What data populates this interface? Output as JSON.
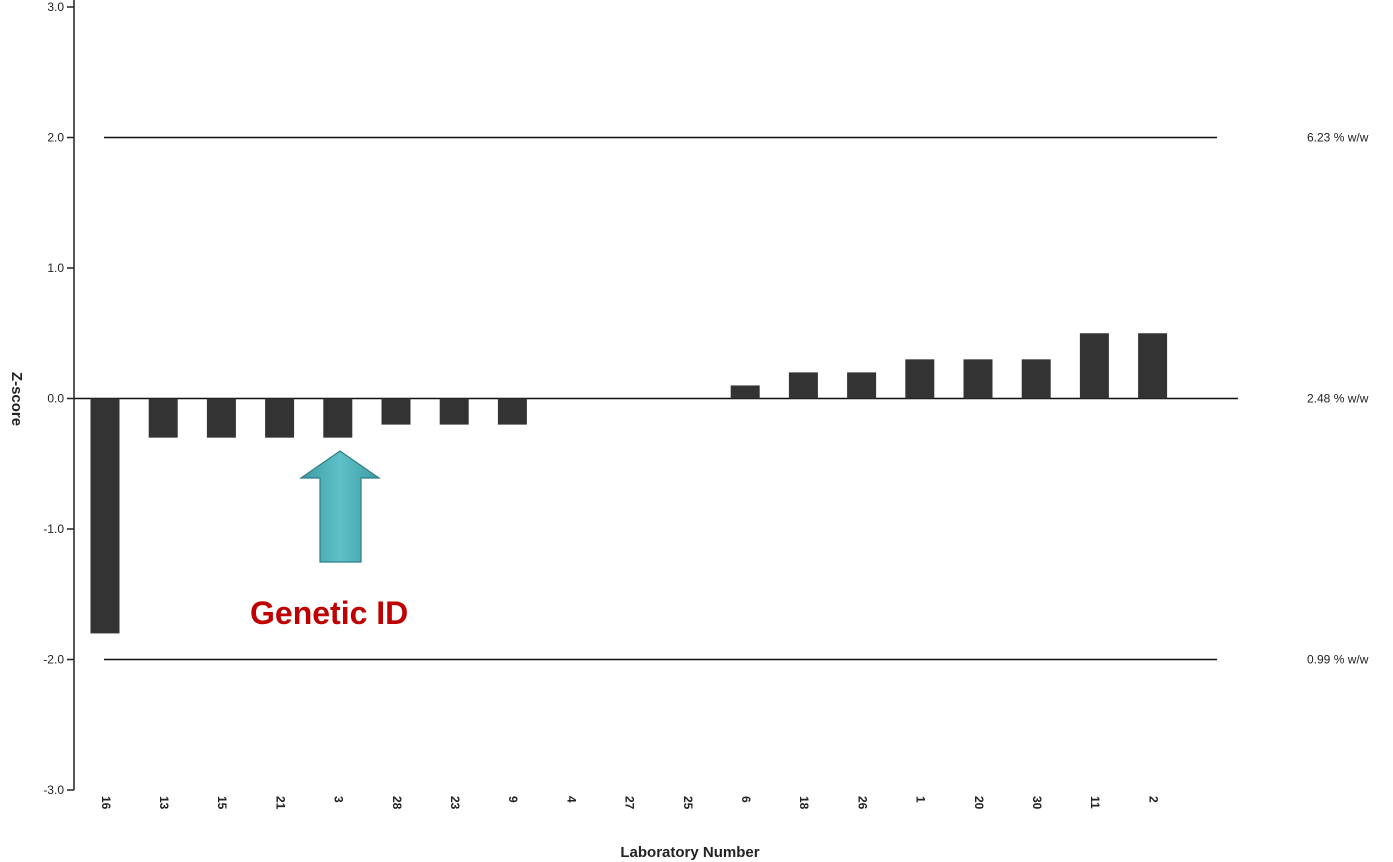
{
  "chart_data": {
    "type": "bar",
    "xlabel": "Laboratory Number",
    "ylabel": "Z-score",
    "ylim": [
      -3.0,
      3.0
    ],
    "yticks": [
      "3.0",
      "2.0",
      "1.0",
      "0.0",
      "-1.0",
      "-2.0",
      "-3.0"
    ],
    "ytick_values": [
      3.0,
      2.0,
      1.0,
      0.0,
      -1.0,
      -2.0,
      -3.0
    ],
    "grid": false,
    "categories": [
      "16",
      "13",
      "15",
      "21",
      "3",
      "28",
      "23",
      "9",
      "4",
      "27",
      "25",
      "6",
      "18",
      "26",
      "1",
      "20",
      "30",
      "11",
      "2"
    ],
    "values": [
      -1.8,
      -0.3,
      -0.3,
      -0.3,
      -0.3,
      -0.2,
      -0.2,
      -0.2,
      0.0,
      0.0,
      0.0,
      0.1,
      0.2,
      0.2,
      0.3,
      0.3,
      0.3,
      0.5,
      0.5
    ],
    "bar_color": "#333333",
    "reference_lines": [
      {
        "z": 2.0,
        "label": "6.23 % w/w"
      },
      {
        "z": 0.0,
        "label": "2.48 % w/w"
      },
      {
        "z": -2.0,
        "label": "0.99 % w/w"
      }
    ],
    "annotation": {
      "text": "Genetic ID",
      "text_color": "#C00000",
      "arrow_color": "#4BACB4",
      "points_to_category": "3"
    }
  }
}
